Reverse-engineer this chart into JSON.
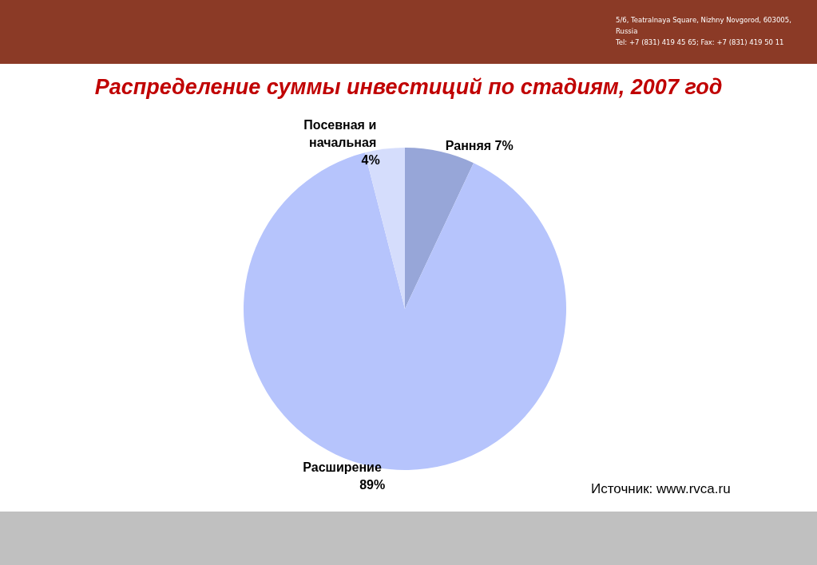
{
  "chart_data": {
    "type": "pie",
    "title": "Распределение суммы инвестиций по стадиям, 2007 год",
    "categories": [
      "Ранняя",
      "Расширение",
      "Посевная и начальная"
    ],
    "values": [
      7,
      89,
      4
    ],
    "value_labels": [
      "7%",
      "89%",
      "4%"
    ],
    "colors": [
      "#97a6d8",
      "#b6c4fc",
      "#d5ddfc"
    ],
    "annotations": [
      "5/6, Teatralnaya Square, Nizhny Novgorod, 603005, Russia",
      "Tel: +7 (831) 419 45 65; Fax: +7 (831) 419 50 11",
      "Источник: www.rvca.ru"
    ]
  }
}
